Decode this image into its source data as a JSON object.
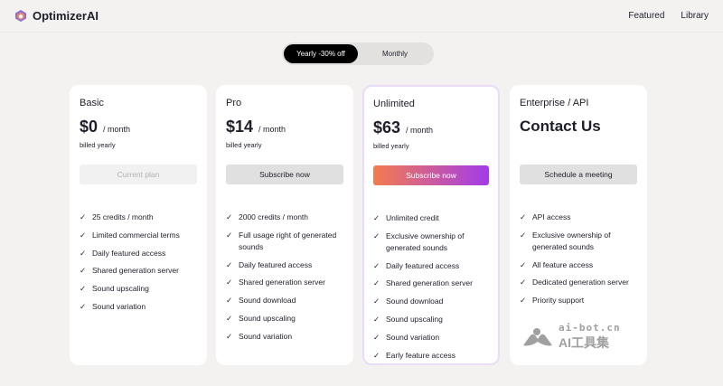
{
  "header": {
    "brand": "OptimizerAI",
    "nav": [
      "Featured",
      "Library"
    ]
  },
  "billing_toggle": {
    "options": [
      "Yearly -30% off",
      "Monthly"
    ],
    "selected": "Yearly -30% off"
  },
  "plans": [
    {
      "name": "Basic",
      "price": "$0",
      "period": "/ month",
      "billed": "billed yearly",
      "button": "Current plan",
      "button_style": "disabled",
      "features": [
        "25 credits / month",
        "Limited commercial terms",
        "Daily featured access",
        "Shared generation server",
        "Sound upscaling",
        "Sound variation"
      ]
    },
    {
      "name": "Pro",
      "price": "$14",
      "period": "/ month",
      "billed": "billed yearly",
      "button": "Subscribe now",
      "button_style": "gray",
      "features": [
        "2000 credits / month",
        "Full usage right of generated sounds",
        "Daily featured access",
        "Shared generation server",
        "Sound download",
        "Sound upscaling",
        "Sound variation"
      ]
    },
    {
      "name": "Unlimited",
      "price": "$63",
      "period": "/ month",
      "billed": "billed yearly",
      "button": "Subscribe now",
      "button_style": "gradient",
      "features": [
        "Unlimited credit",
        "Exclusive ownership of generated sounds",
        "Daily featured access",
        "Shared generation server",
        "Sound download",
        "Sound upscaling",
        "Sound variation",
        "Early feature access"
      ]
    },
    {
      "name": "Enterprise / API",
      "price": "Contact Us",
      "button": "Schedule a meeting",
      "button_style": "gray",
      "features": [
        "API access",
        "Exclusive ownership of generated sounds",
        "All feature access",
        "Dedicated generation server",
        "Priority support"
      ]
    }
  ],
  "watermark": {
    "line1": "ai-bot.cn",
    "line2": "AI工具集"
  },
  "colors": {
    "gradient_start": "#f47c4e",
    "gradient_end": "#a23bea",
    "highlight_border": "#e8dcf6"
  }
}
